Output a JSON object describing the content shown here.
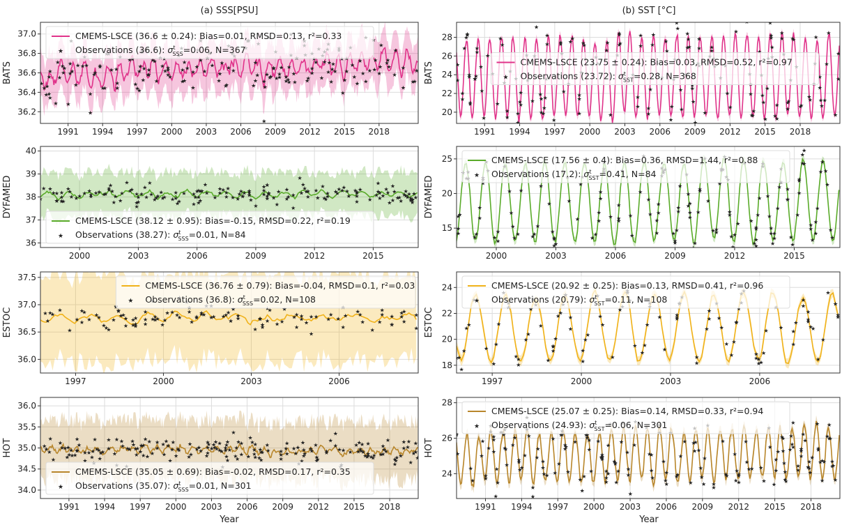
{
  "figure": {
    "x_title": "Year"
  },
  "columns": [
    {
      "title": "(a) SSS[PSU]"
    },
    {
      "title": "(b) SST [°C]"
    }
  ],
  "chart_data": [
    {
      "type": "line",
      "id": "bats-sss",
      "col": 0,
      "row": 0,
      "ylabel": "BATS",
      "color": "#e0338a",
      "xlim": [
        1988.6,
        2021.4
      ],
      "ylim": [
        36.08,
        37.12
      ],
      "xticks": [
        1991,
        1994,
        1997,
        2000,
        2003,
        2006,
        2009,
        2012,
        2015,
        2018
      ],
      "yticks": [
        36.2,
        36.4,
        36.6,
        36.8,
        37.0
      ],
      "ytick_labels": [
        "36.2",
        "36.4",
        "36.6",
        "36.8",
        "37.0"
      ],
      "mean": 36.6,
      "seasonal_amp": 0.08,
      "trend": [
        36.56,
        36.72
      ],
      "band": 0.24,
      "obs_sigma": 0.12,
      "band_start": 36.55,
      "band_end": 36.72,
      "legend": {
        "model": "CMEMS-LSCE (36.6 ± 0.24): Bias=0.01, RMSD=0.13, r²=0.33",
        "obs_prefix": "Observations (36.6): ",
        "sigma_sym": "σ",
        "sigma_sup": "t",
        "sigma_sub": "SSS",
        "obs_suffix": "=0.06, N=367",
        "pos": "top-left"
      }
    },
    {
      "type": "line",
      "id": "bats-sst",
      "col": 1,
      "row": 0,
      "ylabel": "BATS",
      "color": "#e0338a",
      "xlim": [
        1988.6,
        2021.4
      ],
      "ylim": [
        18.8,
        29.6
      ],
      "xticks": [
        1991,
        1994,
        1997,
        2000,
        2003,
        2006,
        2009,
        2012,
        2015,
        2018
      ],
      "yticks": [
        20,
        22,
        24,
        26,
        28
      ],
      "ytick_labels": [
        "20",
        "22",
        "24",
        "26",
        "28"
      ],
      "mean": 23.75,
      "seasonal_amp": 4.3,
      "trend": [
        23.7,
        23.8
      ],
      "band": 0.4,
      "obs_sigma": 0.8,
      "band_start": 23.7,
      "band_end": 23.8,
      "legend": {
        "model": "CMEMS-LSCE (23.75 ± 0.24): Bias=0.03, RMSD=0.52, r²=0.97",
        "obs_prefix": "Observations (23.72): ",
        "sigma_sym": "σ",
        "sigma_sup": "t",
        "sigma_sub": "SST",
        "obs_suffix": "=0.28, N=368",
        "pos": "center"
      }
    },
    {
      "type": "line",
      "id": "dyfamed-sss",
      "col": 0,
      "row": 1,
      "ylabel": "DYFAMED",
      "color": "#5aab2a",
      "xlim": [
        1998.0,
        2017.3
      ],
      "ylim": [
        35.8,
        40.2
      ],
      "xticks": [
        2000,
        2003,
        2006,
        2009,
        2012,
        2015
      ],
      "yticks": [
        36,
        37,
        38,
        39,
        40
      ],
      "ytick_labels": [
        "36",
        "37",
        "38",
        "39",
        "40"
      ],
      "mean": 38.12,
      "seasonal_amp": 0.12,
      "trend": [
        38.1,
        38.15
      ],
      "band": 0.95,
      "obs_sigma": 0.18,
      "band_start": 38.1,
      "band_end": 38.15,
      "legend": {
        "model": "CMEMS-LSCE (38.12 ± 0.95): Bias=-0.15, RMSD=0.22, r²=0.19",
        "obs_prefix": "Observations (38.27): ",
        "sigma_sym": "σ",
        "sigma_sup": "t",
        "sigma_sub": "SSS",
        "obs_suffix": "=0.01, N=84",
        "pos": "bottom-left"
      }
    },
    {
      "type": "line",
      "id": "dyfamed-sst",
      "col": 1,
      "row": 1,
      "ylabel": "DYFAMED",
      "color": "#5aab2a",
      "xlim": [
        1998.0,
        2017.3
      ],
      "ylim": [
        12.2,
        26.8
      ],
      "xticks": [
        2000,
        2003,
        2006,
        2009,
        2012,
        2015
      ],
      "yticks": [
        15,
        20,
        25
      ],
      "ytick_labels": [
        "15",
        "20",
        "25"
      ],
      "mean": 18.8,
      "seasonal_amp": 5.8,
      "trend": [
        18.8,
        18.8
      ],
      "band": 0.6,
      "obs_sigma": 0.9,
      "band_start": 18.8,
      "band_end": 18.8,
      "legend": {
        "model": "CMEMS-LSCE (17.56 ± 0.4): Bias=0.36, RMSD=1.44, r²=0.88",
        "obs_prefix": "Observations (17.2): ",
        "sigma_sym": "σ",
        "sigma_sup": "t",
        "sigma_sub": "SST",
        "obs_suffix": "=0.41, N=84",
        "pos": "top-left"
      }
    },
    {
      "type": "line",
      "id": "estoc-sss",
      "col": 0,
      "row": 2,
      "ylabel": "ESTOC",
      "color": "#f0b21a",
      "xlim": [
        1995.8,
        2008.7
      ],
      "ylim": [
        35.75,
        37.6
      ],
      "xticks": [
        1997,
        2000,
        2003,
        2006
      ],
      "yticks": [
        36.0,
        36.5,
        37.0,
        37.5
      ],
      "ytick_labels": [
        "36.0",
        "36.5",
        "37.0",
        "37.5"
      ],
      "mean": 36.76,
      "seasonal_amp": 0.05,
      "trend": [
        36.76,
        36.78
      ],
      "band": 0.79,
      "obs_sigma": 0.09,
      "band_start": 36.76,
      "band_end": 36.78,
      "legend": {
        "model": "CMEMS-LSCE (36.76 ± 0.79): Bias=-0.04, RMSD=0.1, r²=0.03",
        "obs_prefix": "Observations (36.8): ",
        "sigma_sym": "σ",
        "sigma_sup": "t",
        "sigma_sub": "SSS",
        "obs_suffix": "=0.02, N=108",
        "pos": "top-center"
      }
    },
    {
      "type": "line",
      "id": "estoc-sst",
      "col": 1,
      "row": 2,
      "ylabel": "ESTOC",
      "color": "#f0b21a",
      "xlim": [
        1995.8,
        2008.7
      ],
      "ylim": [
        17.4,
        25.2
      ],
      "xticks": [
        1997,
        2000,
        2003,
        2006
      ],
      "yticks": [
        18,
        20,
        22,
        24
      ],
      "ytick_labels": [
        "18",
        "20",
        "22",
        "24"
      ],
      "mean": 21.0,
      "seasonal_amp": 2.6,
      "trend": [
        21.0,
        21.0
      ],
      "band": 0.35,
      "obs_sigma": 0.5,
      "band_start": 21.0,
      "band_end": 21.0,
      "legend": {
        "model": "CMEMS-LSCE (20.92 ± 0.25): Bias=0.13, RMSD=0.41, r²=0.96",
        "obs_prefix": "Observations (20.79): ",
        "sigma_sym": "σ",
        "sigma_sup": "t",
        "sigma_sub": "SST",
        "obs_suffix": "=0.11, N=108",
        "pos": "top-left"
      }
    },
    {
      "type": "line",
      "id": "hot-sss",
      "col": 0,
      "row": 3,
      "ylabel": "HOT",
      "color": "#b8862b",
      "xlim": [
        1988.6,
        2020.4
      ],
      "ylim": [
        33.8,
        36.2
      ],
      "xticks": [
        1991,
        1994,
        1997,
        2000,
        2003,
        2006,
        2009,
        2012,
        2015,
        2018
      ],
      "yticks": [
        34.0,
        34.5,
        35.0,
        35.5,
        36.0
      ],
      "ytick_labels": [
        "34.0",
        "34.5",
        "35.0",
        "35.5",
        "36.0"
      ],
      "mean": 35.05,
      "seasonal_amp": 0.06,
      "trend": [
        35.0,
        34.9
      ],
      "band": 0.69,
      "obs_sigma": 0.14,
      "band_start": 35.0,
      "band_end": 34.9,
      "legend": {
        "model": "CMEMS-LSCE (35.05 ± 0.69): Bias=-0.02, RMSD=0.17, r²=0.35",
        "obs_prefix": "Observations (35.07): ",
        "sigma_sym": "σ",
        "sigma_sup": "t",
        "sigma_sub": "SSS",
        "obs_suffix": "=0.01, N=301",
        "pos": "bottom-left"
      }
    },
    {
      "type": "line",
      "id": "hot-sst",
      "col": 1,
      "row": 3,
      "ylabel": "HOT",
      "color": "#b8862b",
      "xlim": [
        1988.6,
        2020.4
      ],
      "ylim": [
        22.6,
        28.3
      ],
      "xticks": [
        1991,
        1994,
        1997,
        2000,
        2003,
        2006,
        2009,
        2012,
        2015,
        2018
      ],
      "yticks": [
        24,
        26,
        28
      ],
      "ytick_labels": [
        "24",
        "26",
        "28"
      ],
      "mean": 25.0,
      "seasonal_amp": 1.45,
      "trend": [
        24.9,
        25.2
      ],
      "band": 0.3,
      "obs_sigma": 0.45,
      "band_start": 24.9,
      "band_end": 25.2,
      "legend": {
        "model": "CMEMS-LSCE (25.07 ± 0.25): Bias=0.14, RMSD=0.33, r²=0.94",
        "obs_prefix": "Observations (24.93): ",
        "sigma_sym": "σ",
        "sigma_sup": "t",
        "sigma_sub": "SST",
        "obs_suffix": "=0.06, N=301",
        "pos": "top-left"
      }
    }
  ]
}
